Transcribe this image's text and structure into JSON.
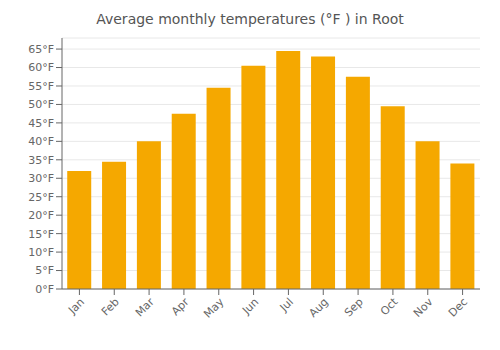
{
  "chart_data": {
    "type": "bar",
    "title": "Average monthly temperatures (°F ) in Root",
    "categories": [
      "Jan",
      "Feb",
      "Mar",
      "Apr",
      "May",
      "Jun",
      "Jul",
      "Aug",
      "Sep",
      "Oct",
      "Nov",
      "Dec"
    ],
    "values": [
      32,
      34.5,
      40,
      47.5,
      54.5,
      60.5,
      64.5,
      63,
      57.5,
      49.5,
      40,
      34
    ],
    "color": "#F5A800",
    "ylim": [
      0,
      68
    ],
    "yticks": [
      {
        "value": 0,
        "label": "0°F"
      },
      {
        "value": 5,
        "label": "5°F"
      },
      {
        "value": 10,
        "label": "10°F"
      },
      {
        "value": 15,
        "label": "15°F"
      },
      {
        "value": 20,
        "label": "20°F"
      },
      {
        "value": 25,
        "label": "25°F"
      },
      {
        "value": 30,
        "label": "30°F"
      },
      {
        "value": 35,
        "label": "35°F"
      },
      {
        "value": 40,
        "label": "40°F"
      },
      {
        "value": 45,
        "label": "45°F"
      },
      {
        "value": 50,
        "label": "50°F"
      },
      {
        "value": 55,
        "label": "55°F"
      },
      {
        "value": 60,
        "label": "60°F"
      },
      {
        "value": 65,
        "label": "65°F"
      }
    ],
    "grid": true
  }
}
